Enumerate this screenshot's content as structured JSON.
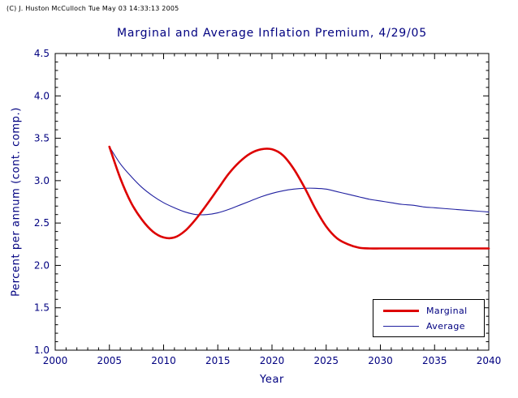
{
  "meta": {
    "copyright": "(C) J. Huston McCulloch Tue May 03 14:33:13 2005"
  },
  "chart_data": {
    "type": "line",
    "title": "Marginal and Average Inflation Premium, 4/29/05",
    "xlabel": "Year",
    "ylabel": "Percent per annum (cont. comp.)",
    "xlim": [
      2000,
      2040
    ],
    "ylim": [
      1.0,
      4.5
    ],
    "x_major_ticks": [
      2000,
      2005,
      2010,
      2015,
      2020,
      2025,
      2030,
      2035,
      2040
    ],
    "y_major_ticks": [
      1.0,
      1.5,
      2.0,
      2.5,
      3.0,
      3.5,
      4.0,
      4.5
    ],
    "x_minor_step": 1,
    "y_minor_step": 0.1,
    "grid": false,
    "legend_position": "bottom-right",
    "colors": {
      "text": "#000080",
      "axis": "#000000",
      "background": "#ffffff"
    },
    "x": [
      2005,
      2006,
      2007,
      2008,
      2009,
      2010,
      2011,
      2012,
      2013,
      2014,
      2015,
      2016,
      2017,
      2018,
      2019,
      2020,
      2021,
      2022,
      2023,
      2024,
      2025,
      2026,
      2027,
      2028,
      2029,
      2030,
      2031,
      2032,
      2033,
      2034,
      2035,
      2036,
      2037,
      2038,
      2039,
      2040
    ],
    "series": [
      {
        "name": "Marginal",
        "color": "#dd0000",
        "width": 2.6,
        "values": [
          3.4,
          3.03,
          2.74,
          2.54,
          2.4,
          2.33,
          2.33,
          2.41,
          2.55,
          2.72,
          2.9,
          3.08,
          3.22,
          3.32,
          3.37,
          3.37,
          3.3,
          3.14,
          2.92,
          2.67,
          2.46,
          2.32,
          2.25,
          2.21,
          2.2,
          2.2,
          2.2,
          2.2,
          2.2,
          2.2,
          2.2,
          2.2,
          2.2,
          2.2,
          2.2,
          2.2
        ]
      },
      {
        "name": "Average",
        "color": "#2020a0",
        "width": 1.1,
        "values": [
          3.4,
          3.2,
          3.05,
          2.92,
          2.82,
          2.74,
          2.68,
          2.63,
          2.6,
          2.6,
          2.62,
          2.66,
          2.71,
          2.76,
          2.81,
          2.85,
          2.88,
          2.9,
          2.91,
          2.91,
          2.9,
          2.87,
          2.84,
          2.81,
          2.78,
          2.76,
          2.74,
          2.72,
          2.71,
          2.69,
          2.68,
          2.67,
          2.66,
          2.65,
          2.64,
          2.63
        ]
      }
    ]
  }
}
